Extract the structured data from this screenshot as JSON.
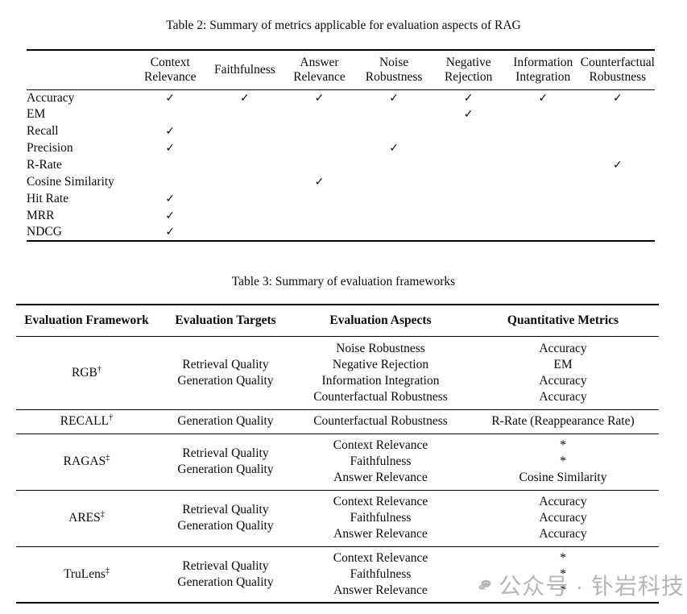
{
  "page": {
    "watermark": {
      "icon": "wechat-icon",
      "text": "公众号 · 钋岩科技",
      "color": "#b6b6b6"
    }
  },
  "table2": {
    "caption": "Table 2: Summary of metrics applicable for evaluation aspects of RAG",
    "check_glyph": "✓",
    "columns": [
      [
        ""
      ],
      [
        "Context",
        "Relevance"
      ],
      [
        "Faithfulness"
      ],
      [
        "Answer",
        "Relevance"
      ],
      [
        "Noise",
        "Robustness"
      ],
      [
        "Negative",
        "Rejection"
      ],
      [
        "Information",
        "Integration"
      ],
      [
        "Counterfactual",
        "Robustness"
      ]
    ],
    "rows": [
      {
        "label": "Accuracy",
        "checks": [
          1,
          1,
          1,
          1,
          1,
          1,
          1
        ]
      },
      {
        "label": "EM",
        "checks": [
          0,
          0,
          0,
          0,
          1,
          0,
          0
        ]
      },
      {
        "label": "Recall",
        "checks": [
          1,
          0,
          0,
          0,
          0,
          0,
          0
        ]
      },
      {
        "label": "Precision",
        "checks": [
          1,
          0,
          0,
          1,
          0,
          0,
          0
        ]
      },
      {
        "label": "R-Rate",
        "checks": [
          0,
          0,
          0,
          0,
          0,
          0,
          1
        ]
      },
      {
        "label": "Cosine Similarity",
        "checks": [
          0,
          0,
          1,
          0,
          0,
          0,
          0
        ]
      },
      {
        "label": "Hit Rate",
        "checks": [
          1,
          0,
          0,
          0,
          0,
          0,
          0
        ]
      },
      {
        "label": "MRR",
        "checks": [
          1,
          0,
          0,
          0,
          0,
          0,
          0
        ]
      },
      {
        "label": "NDCG",
        "checks": [
          1,
          0,
          0,
          0,
          0,
          0,
          0
        ]
      }
    ]
  },
  "table3": {
    "caption": "Table 3: Summary of evaluation frameworks",
    "columns": [
      "Evaluation Framework",
      "Evaluation Targets",
      "Evaluation Aspects",
      "Quantitative Metrics"
    ],
    "rows": [
      {
        "framework": "RGB",
        "framework_mark": "†",
        "targets": [
          "Retrieval Quality",
          "Generation Quality"
        ],
        "aspects": [
          "Noise Robustness",
          "Negative Rejection",
          "Information Integration",
          "Counterfactual Robustness"
        ],
        "metrics": [
          "Accuracy",
          "EM",
          "Accuracy",
          "Accuracy"
        ]
      },
      {
        "framework": "RECALL",
        "framework_mark": "†",
        "targets": [
          "Generation Quality"
        ],
        "aspects": [
          "Counterfactual Robustness"
        ],
        "metrics": [
          "R-Rate (Reappearance Rate)"
        ]
      },
      {
        "framework": "RAGAS",
        "framework_mark": "‡",
        "targets": [
          "Retrieval Quality",
          "Generation Quality"
        ],
        "aspects": [
          "Context Relevance",
          "Faithfulness",
          "Answer Relevance"
        ],
        "metrics": [
          "*",
          "*",
          "Cosine Similarity"
        ]
      },
      {
        "framework": "ARES",
        "framework_mark": "‡",
        "targets": [
          "Retrieval Quality",
          "Generation Quality"
        ],
        "aspects": [
          "Context Relevance",
          "Faithfulness",
          "Answer Relevance"
        ],
        "metrics": [
          "Accuracy",
          "Accuracy",
          "Accuracy"
        ]
      },
      {
        "framework": "TruLens",
        "framework_mark": "‡",
        "targets": [
          "Retrieval Quality",
          "Generation Quality"
        ],
        "aspects": [
          "Context Relevance",
          "Faithfulness",
          "Answer Relevance"
        ],
        "metrics": [
          "*",
          "*",
          "*"
        ]
      }
    ]
  }
}
